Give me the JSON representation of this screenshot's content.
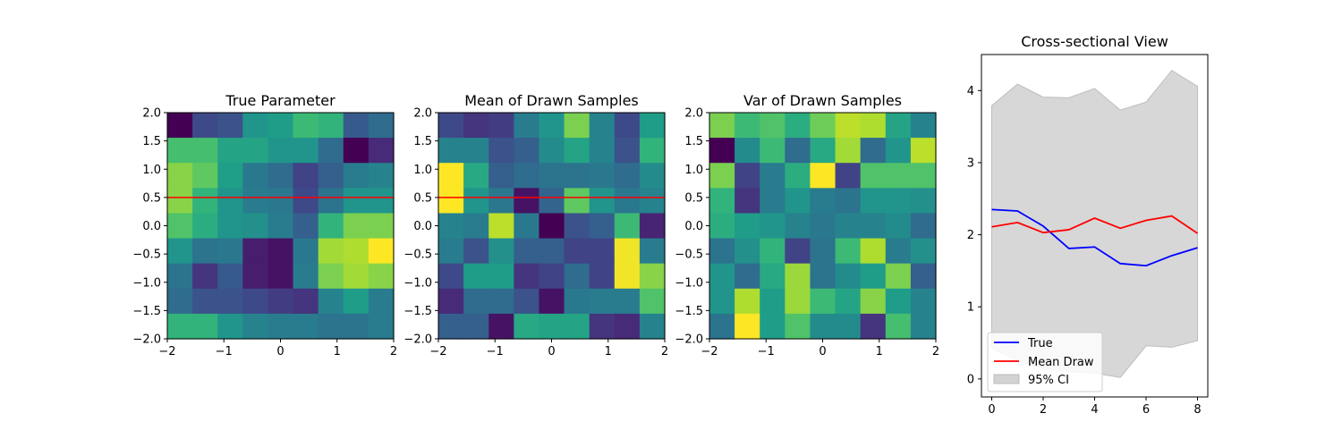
{
  "chart_data": [
    {
      "type": "heatmap",
      "title": "True Parameter",
      "colormap": "viridis",
      "xlim": [
        -2,
        2
      ],
      "ylim": [
        -2,
        2
      ],
      "xticks": [
        "−2",
        "−1",
        "0",
        "1",
        "2"
      ],
      "yticks": [
        "−2.0",
        "−1.5",
        "−1.0",
        "−0.5",
        "0.0",
        "0.5",
        "1.0",
        "1.5",
        "2.0"
      ],
      "horizontal_line": {
        "y": 0.5,
        "color": "#ff0000"
      },
      "grid": [
        [
          0.0,
          0.22,
          0.25,
          0.52,
          0.55,
          0.68,
          0.65,
          0.28,
          0.35
        ],
        [
          0.7,
          0.7,
          0.58,
          0.58,
          0.52,
          0.52,
          0.35,
          0.0,
          0.12
        ],
        [
          0.82,
          0.75,
          0.56,
          0.4,
          0.35,
          0.2,
          0.3,
          0.42,
          0.45
        ],
        [
          0.82,
          0.65,
          0.52,
          0.42,
          0.4,
          0.22,
          0.38,
          0.52,
          0.52
        ],
        [
          0.72,
          0.62,
          0.52,
          0.5,
          0.42,
          0.3,
          0.65,
          0.8,
          0.8
        ],
        [
          0.52,
          0.38,
          0.4,
          0.08,
          0.05,
          0.4,
          0.86,
          0.88,
          1.0
        ],
        [
          0.38,
          0.15,
          0.28,
          0.08,
          0.05,
          0.42,
          0.8,
          0.86,
          0.82
        ],
        [
          0.35,
          0.25,
          0.25,
          0.22,
          0.18,
          0.15,
          0.45,
          0.55,
          0.42
        ],
        [
          0.65,
          0.65,
          0.52,
          0.45,
          0.42,
          0.42,
          0.38,
          0.38,
          0.42
        ]
      ]
    },
    {
      "type": "heatmap",
      "title": "Mean of Drawn Samples",
      "colormap": "viridis",
      "xlim": [
        -2,
        2
      ],
      "ylim": [
        -2,
        2
      ],
      "xticks": [
        "−2",
        "−1",
        "0",
        "1",
        "2"
      ],
      "yticks": [
        "−2.0",
        "−1.5",
        "−1.0",
        "−0.5",
        "0.0",
        "0.5",
        "1.0",
        "1.5",
        "2.0"
      ],
      "horizontal_line": {
        "y": 0.5,
        "color": "#ff0000"
      },
      "grid": [
        [
          0.22,
          0.15,
          0.18,
          0.42,
          0.52,
          0.8,
          0.45,
          0.22,
          0.55
        ],
        [
          0.45,
          0.45,
          0.25,
          0.3,
          0.48,
          0.58,
          0.45,
          0.25,
          0.65
        ],
        [
          1.0,
          0.6,
          0.3,
          0.35,
          0.38,
          0.38,
          0.4,
          0.35,
          0.48
        ],
        [
          1.0,
          0.52,
          0.4,
          0.05,
          0.32,
          0.75,
          0.52,
          0.4,
          0.45
        ],
        [
          0.45,
          0.42,
          0.9,
          0.4,
          0.0,
          0.25,
          0.3,
          0.68,
          0.1
        ],
        [
          0.42,
          0.25,
          0.5,
          0.3,
          0.3,
          0.2,
          0.2,
          0.98,
          0.42
        ],
        [
          0.22,
          0.55,
          0.55,
          0.15,
          0.2,
          0.35,
          0.2,
          0.98,
          0.82
        ],
        [
          0.12,
          0.35,
          0.35,
          0.25,
          0.05,
          0.4,
          0.42,
          0.42,
          0.72
        ],
        [
          0.3,
          0.3,
          0.05,
          0.6,
          0.58,
          0.58,
          0.15,
          0.12,
          0.45
        ]
      ]
    },
    {
      "type": "heatmap",
      "title": "Var of Drawn Samples",
      "colormap": "viridis",
      "xlim": [
        -2,
        2
      ],
      "ylim": [
        -2,
        2
      ],
      "xticks": [
        "−2",
        "−1",
        "0",
        "1",
        "2"
      ],
      "yticks": [
        "−2.0",
        "−1.5",
        "−1.0",
        "−0.5",
        "0.0",
        "0.5",
        "1.0",
        "1.5",
        "2.0"
      ],
      "grid": [
        [
          0.8,
          0.68,
          0.72,
          0.62,
          0.78,
          0.9,
          0.88,
          0.58,
          0.45
        ],
        [
          0.0,
          0.48,
          0.68,
          0.35,
          0.6,
          0.86,
          0.35,
          0.52,
          0.9
        ],
        [
          0.8,
          0.2,
          0.42,
          0.62,
          1.0,
          0.2,
          0.72,
          0.72,
          0.72
        ],
        [
          0.65,
          0.15,
          0.42,
          0.52,
          0.42,
          0.38,
          0.52,
          0.52,
          0.5
        ],
        [
          0.62,
          0.55,
          0.52,
          0.45,
          0.4,
          0.45,
          0.45,
          0.48,
          0.35
        ],
        [
          0.38,
          0.5,
          0.65,
          0.2,
          0.38,
          0.68,
          0.88,
          0.42,
          0.5
        ],
        [
          0.52,
          0.35,
          0.6,
          0.85,
          0.38,
          0.48,
          0.55,
          0.8,
          0.3
        ],
        [
          0.52,
          0.88,
          0.55,
          0.85,
          0.68,
          0.58,
          0.82,
          0.55,
          0.45
        ],
        [
          0.38,
          1.0,
          0.55,
          0.72,
          0.48,
          0.48,
          0.15,
          0.7,
          0.45
        ]
      ]
    },
    {
      "type": "line",
      "title": "Cross-sectional View",
      "x": [
        0,
        1,
        2,
        3,
        4,
        5,
        6,
        7,
        8
      ],
      "xlim": [
        -0.4,
        8.4
      ],
      "ylim": [
        -0.25,
        4.5
      ],
      "xticks": [
        "0",
        "2",
        "4",
        "6",
        "8"
      ],
      "xtick_values": [
        0,
        2,
        4,
        6,
        8
      ],
      "yticks": [
        "0",
        "1",
        "2",
        "3",
        "4"
      ],
      "ytick_values": [
        0,
        1,
        2,
        3,
        4
      ],
      "series": [
        {
          "name": "True",
          "color": "#0000ff",
          "values": [
            2.35,
            2.33,
            2.12,
            1.81,
            1.83,
            1.6,
            1.57,
            1.71,
            1.82
          ]
        },
        {
          "name": "Mean Draw",
          "color": "#ff0000",
          "values": [
            2.11,
            2.17,
            2.03,
            2.07,
            2.23,
            2.09,
            2.2,
            2.26,
            2.02
          ]
        }
      ],
      "band": {
        "name": "95% CI",
        "color": "#d3d3d3",
        "upper": [
          3.79,
          4.09,
          3.91,
          3.9,
          4.03,
          3.73,
          3.84,
          4.28,
          4.06
        ],
        "lower": [
          0.43,
          0.25,
          0.15,
          0.1,
          0.08,
          0.02,
          0.46,
          0.44,
          0.53
        ]
      },
      "legend": "lower-left"
    }
  ]
}
